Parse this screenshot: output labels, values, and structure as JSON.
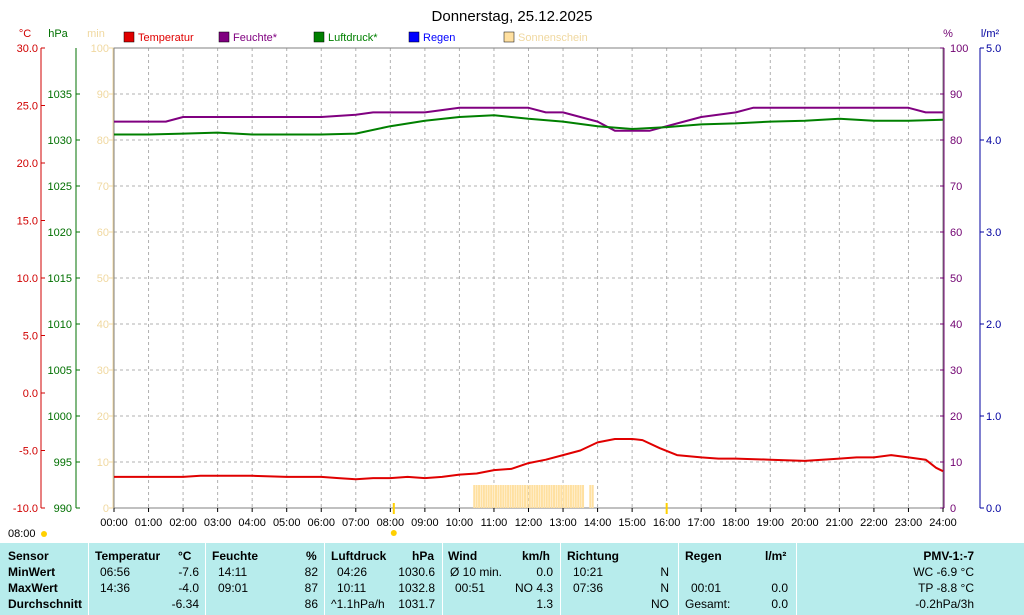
{
  "chart_data": {
    "type": "line",
    "title": "Donnerstag, 25.12.2025",
    "x": [
      "00:00",
      "01:00",
      "02:00",
      "03:00",
      "04:00",
      "05:00",
      "06:00",
      "07:00",
      "08:00",
      "09:00",
      "10:00",
      "11:00",
      "12:00",
      "13:00",
      "14:00",
      "15:00",
      "16:00",
      "17:00",
      "18:00",
      "19:00",
      "20:00",
      "21:00",
      "22:00",
      "23:00",
      "24:00"
    ],
    "xlim": [
      0,
      24
    ],
    "axes": {
      "temp": {
        "unit": "°C",
        "range": [
          -10,
          30
        ],
        "ticks": [
          "30.0",
          "25.0",
          "20.0",
          "15.0",
          "10.0",
          "5.0",
          "0.0",
          "-5.0",
          "-10.0"
        ],
        "color": "#d00000"
      },
      "press": {
        "unit": "hPa",
        "range": [
          990,
          1040
        ],
        "ticks": [
          "1035",
          "1030",
          "1025",
          "1020",
          "1015",
          "1010",
          "1005",
          "1000",
          "995",
          "990"
        ],
        "color": "#007000"
      },
      "sun": {
        "unit": "min",
        "range": [
          0,
          100
        ],
        "ticks": [
          "100",
          "90",
          "80",
          "70",
          "60",
          "50",
          "40",
          "30",
          "20",
          "10",
          "0"
        ],
        "color": "#f0d8a0"
      },
      "hum": {
        "unit": "%",
        "range": [
          0,
          100
        ],
        "ticks": [
          "100",
          "90",
          "80",
          "70",
          "60",
          "50",
          "40",
          "30",
          "20",
          "10",
          "0"
        ],
        "color": "#700070"
      },
      "rain": {
        "unit": "l/m²",
        "range": [
          0,
          5
        ],
        "ticks": [
          "5.0",
          "4.0",
          "3.0",
          "2.0",
          "1.0",
          "0.0"
        ],
        "color": "#0000a0"
      }
    },
    "legend": [
      {
        "label": "Temperatur",
        "color": "#e00000"
      },
      {
        "label": "Feuchte*",
        "color": "#800080"
      },
      {
        "label": "Luftdruck*",
        "color": "#008000"
      },
      {
        "label": "Regen",
        "color": "#0000ff"
      },
      {
        "label": "Sonnenschein",
        "color": "#ffe0a0"
      }
    ],
    "series": [
      {
        "name": "Temperatur",
        "axis": "temp",
        "color": "#e00000",
        "points": [
          [
            0,
            -7.3
          ],
          [
            1,
            -7.3
          ],
          [
            2,
            -7.3
          ],
          [
            2.5,
            -7.2
          ],
          [
            3,
            -7.2
          ],
          [
            4,
            -7.2
          ],
          [
            5,
            -7.3
          ],
          [
            6,
            -7.3
          ],
          [
            6.5,
            -7.4
          ],
          [
            7,
            -7.5
          ],
          [
            7.5,
            -7.4
          ],
          [
            8,
            -7.4
          ],
          [
            8.5,
            -7.3
          ],
          [
            9,
            -7.4
          ],
          [
            9.5,
            -7.3
          ],
          [
            10,
            -7.1
          ],
          [
            10.5,
            -7.0
          ],
          [
            11,
            -6.7
          ],
          [
            11.5,
            -6.6
          ],
          [
            12,
            -6.1
          ],
          [
            12.5,
            -5.8
          ],
          [
            13,
            -5.4
          ],
          [
            13.5,
            -5.0
          ],
          [
            14,
            -4.3
          ],
          [
            14.5,
            -4.0
          ],
          [
            15,
            -4.0
          ],
          [
            15.3,
            -4.1
          ],
          [
            15.8,
            -4.8
          ],
          [
            16.3,
            -5.4
          ],
          [
            17,
            -5.6
          ],
          [
            17.5,
            -5.7
          ],
          [
            18,
            -5.7
          ],
          [
            19,
            -5.8
          ],
          [
            20,
            -5.9
          ],
          [
            21,
            -5.7
          ],
          [
            21.5,
            -5.6
          ],
          [
            22,
            -5.6
          ],
          [
            22.5,
            -5.4
          ],
          [
            23,
            -5.6
          ],
          [
            23.5,
            -5.8
          ],
          [
            23.8,
            -6.5
          ],
          [
            24,
            -6.8
          ]
        ]
      },
      {
        "name": "Feuchte*",
        "axis": "hum",
        "color": "#800080",
        "points": [
          [
            0,
            84
          ],
          [
            1,
            84
          ],
          [
            1.5,
            84
          ],
          [
            2,
            85
          ],
          [
            3,
            85
          ],
          [
            4,
            85
          ],
          [
            5,
            85
          ],
          [
            6,
            85
          ],
          [
            7,
            85.5
          ],
          [
            7.5,
            86
          ],
          [
            8,
            86
          ],
          [
            9,
            86
          ],
          [
            10,
            87
          ],
          [
            11,
            87
          ],
          [
            12,
            87
          ],
          [
            12.5,
            86
          ],
          [
            13,
            86
          ],
          [
            13.5,
            85
          ],
          [
            14,
            84
          ],
          [
            14.5,
            82
          ],
          [
            15,
            82
          ],
          [
            15.5,
            82
          ],
          [
            16,
            83
          ],
          [
            16.5,
            84
          ],
          [
            17,
            85
          ],
          [
            18,
            86
          ],
          [
            18.5,
            87
          ],
          [
            19,
            87
          ],
          [
            20,
            87
          ],
          [
            21,
            87
          ],
          [
            22,
            87
          ],
          [
            23,
            87
          ],
          [
            23.5,
            86
          ],
          [
            24,
            86
          ]
        ]
      },
      {
        "name": "Luftdruck*",
        "axis": "press",
        "color": "#008000",
        "points": [
          [
            0,
            1030.6
          ],
          [
            1,
            1030.6
          ],
          [
            2,
            1030.7
          ],
          [
            3,
            1030.8
          ],
          [
            4,
            1030.6
          ],
          [
            5,
            1030.6
          ],
          [
            6,
            1030.6
          ],
          [
            7,
            1030.7
          ],
          [
            8,
            1031.5
          ],
          [
            9,
            1032.1
          ],
          [
            10,
            1032.5
          ],
          [
            11,
            1032.7
          ],
          [
            11.5,
            1032.5
          ],
          [
            12,
            1032.3
          ],
          [
            13,
            1032.0
          ],
          [
            14,
            1031.5
          ],
          [
            15,
            1031.2
          ],
          [
            16,
            1031.4
          ],
          [
            17,
            1031.7
          ],
          [
            18,
            1031.8
          ],
          [
            19,
            1032.0
          ],
          [
            20,
            1032.1
          ],
          [
            21,
            1032.3
          ],
          [
            22,
            1032.1
          ],
          [
            23,
            1032.1
          ],
          [
            24,
            1032.2
          ]
        ]
      }
    ],
    "sunshine": {
      "start": 10.4,
      "end": 13.9,
      "gap": [
        13.6,
        13.75
      ],
      "value": 5
    },
    "markers": [
      {
        "label": "08:00",
        "x": 8.1
      }
    ],
    "date_marker": "08:00"
  },
  "footer": {
    "headers": {
      "sensor": "Sensor",
      "temp": "Temperatur",
      "temp_unit": "°C",
      "hum": "Feuchte",
      "hum_unit": "%",
      "press": "Luftdruck",
      "press_unit": "hPa",
      "wind": "Wind",
      "wind_unit": "km/h",
      "dir": "Richtung",
      "rain": "Regen",
      "rain_unit": "l/m²",
      "pmv": "PMV-1:-7"
    },
    "min": {
      "label": "MinWert",
      "temp_time": "06:56",
      "temp_val": "-7.6",
      "hum_time": "14:11",
      "hum_val": "82",
      "press_time": "04:26",
      "press_val": "1030.6",
      "wind_label": "Ø 10 min.",
      "wind_val": "0.0",
      "dir_time": "10:21",
      "dir_val": "N",
      "pmv": "WC -6.9 °C"
    },
    "max": {
      "label": "MaxWert",
      "temp_time": "14:36",
      "temp_val": "-4.0",
      "hum_time": "09:01",
      "hum_val": "87",
      "press_time": "10:11",
      "press_val": "1032.8",
      "wind_time": "00:51",
      "wind_val": "NO 4.3",
      "dir_time": "07:36",
      "dir_val": "N",
      "rain_time": "00:01",
      "rain_val": "0.0",
      "pmv": "TP -8.8 °C"
    },
    "avg": {
      "label": "Durchschnitt",
      "temp_val": "-6.34",
      "hum_val": "86",
      "press_trend": "^1.1hPa/h",
      "press_val": "1031.7",
      "wind_val": "1.3",
      "dir_val": "NO",
      "rain_label": "Gesamt:",
      "rain_val": "0.0",
      "pmv": "-0.2hPa/3h"
    }
  }
}
